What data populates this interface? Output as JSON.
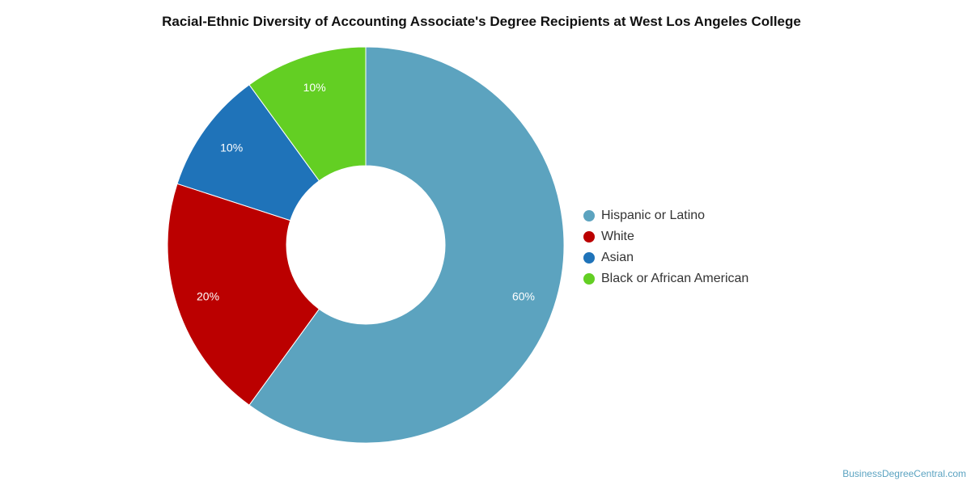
{
  "chart_data": {
    "type": "pie",
    "title": "Racial-Ethnic Diversity of Accounting Associate's Degree Recipients at West Los Angeles College",
    "donut": true,
    "slices": [
      {
        "label": "Hispanic or Latino",
        "value": 60,
        "value_label": "60%",
        "color": "#5ca3bf"
      },
      {
        "label": "White",
        "value": 20,
        "value_label": "20%",
        "color": "#bb0000"
      },
      {
        "label": "Asian",
        "value": 10,
        "value_label": "10%",
        "color": "#1f73b9"
      },
      {
        "label": "Black or African American",
        "value": 10,
        "value_label": "10%",
        "color": "#63cf23"
      }
    ],
    "legend_position": "right"
  },
  "credit": "BusinessDegreeCentral.com"
}
